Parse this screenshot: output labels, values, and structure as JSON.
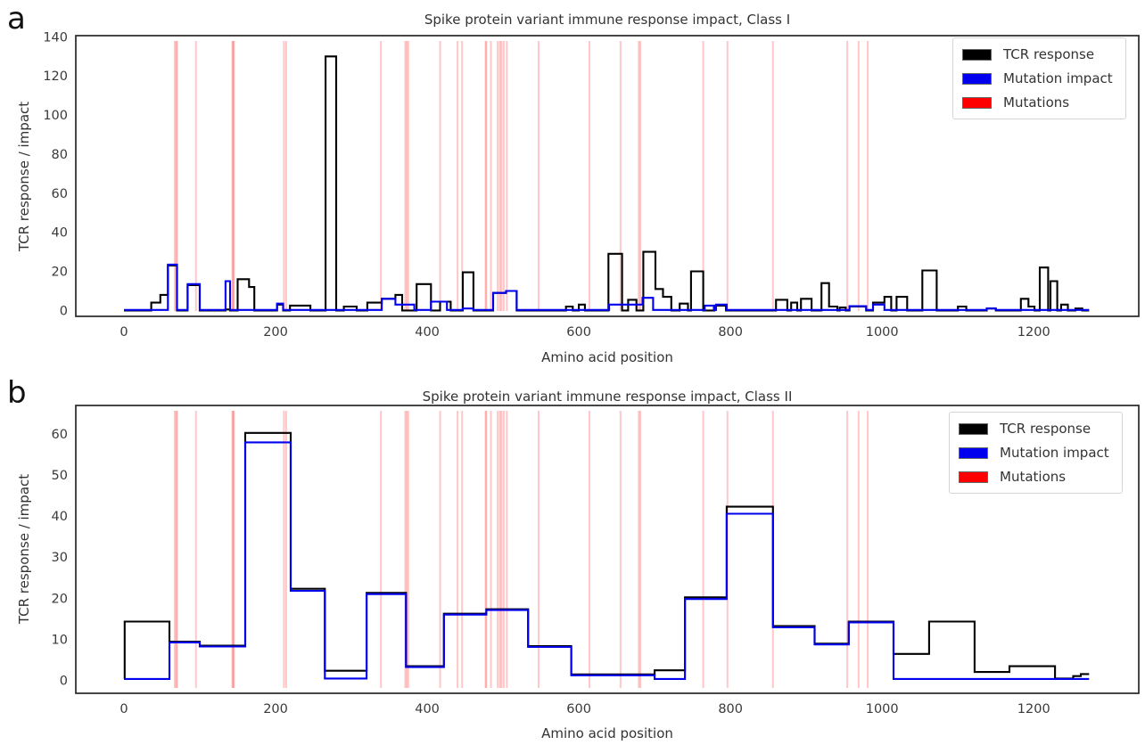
{
  "figure": {
    "background": "#ffffff",
    "frame_color": "#262626",
    "tick_label_color": "#3a3a3a"
  },
  "chart_data": [
    {
      "type": "line",
      "step": true,
      "panel_letter": "a",
      "title": "Spike protein variant immune response impact, Class I",
      "xlabel": "Amino acid position",
      "ylabel": "TCR response / impact",
      "xlim": [
        -63.5,
        1338.5
      ],
      "ylim": [
        -3,
        140.6
      ],
      "xticks": [
        0,
        200,
        400,
        600,
        800,
        1000,
        1200
      ],
      "yticks": [
        0,
        20,
        40,
        60,
        80,
        100,
        120,
        140
      ],
      "grid": false,
      "legend_position": "upper right",
      "mutation_color": "#ff0000",
      "legend": [
        {
          "label": "TCR response",
          "color": "#000000"
        },
        {
          "label": "Mutation impact",
          "color": "#0000ee"
        },
        {
          "label": "Mutations",
          "color": "#ff0000"
        }
      ],
      "mutations": [
        67,
        69,
        70,
        95,
        143,
        144,
        145,
        211,
        214,
        339,
        371,
        373,
        375,
        417,
        440,
        446,
        477,
        478,
        484,
        493,
        496,
        498,
        501,
        505,
        547,
        614,
        655,
        679,
        681,
        764,
        796,
        856,
        954,
        969,
        981
      ],
      "series": [
        {
          "name": "TCR response",
          "color": "#000000",
          "segments": [
            [
              0,
              36,
              0
            ],
            [
              36,
              48,
              4
            ],
            [
              48,
              58,
              8
            ],
            [
              58,
              70,
              23
            ],
            [
              70,
              84,
              0
            ],
            [
              84,
              100,
              13
            ],
            [
              100,
              134,
              0
            ],
            [
              134,
              140,
              0.5
            ],
            [
              140,
              150,
              0
            ],
            [
              150,
              165,
              16
            ],
            [
              165,
              172,
              12
            ],
            [
              172,
              202,
              0
            ],
            [
              202,
              210,
              3
            ],
            [
              210,
              219,
              0
            ],
            [
              219,
              246,
              2.5
            ],
            [
              246,
              266,
              0
            ],
            [
              266,
              280,
              130
            ],
            [
              280,
              290,
              0
            ],
            [
              290,
              307,
              2
            ],
            [
              307,
              321,
              0
            ],
            [
              321,
              340,
              4
            ],
            [
              340,
              358,
              6
            ],
            [
              358,
              367,
              8
            ],
            [
              367,
              386,
              0
            ],
            [
              386,
              405,
              13.5
            ],
            [
              405,
              417,
              0
            ],
            [
              417,
              431,
              4.5
            ],
            [
              431,
              447,
              0
            ],
            [
              447,
              461,
              19.5
            ],
            [
              461,
              487,
              0
            ],
            [
              487,
              504,
              9
            ],
            [
              504,
              518,
              10
            ],
            [
              518,
              583,
              0
            ],
            [
              583,
              592,
              2
            ],
            [
              592,
              600,
              0
            ],
            [
              600,
              608,
              3
            ],
            [
              608,
              639,
              0
            ],
            [
              639,
              657,
              29
            ],
            [
              657,
              665,
              0
            ],
            [
              665,
              676,
              5.5
            ],
            [
              676,
              685,
              0
            ],
            [
              685,
              701,
              30
            ],
            [
              701,
              711,
              11
            ],
            [
              711,
              722,
              7
            ],
            [
              722,
              733,
              0
            ],
            [
              733,
              744,
              3.5
            ],
            [
              744,
              748,
              0
            ],
            [
              748,
              764,
              20
            ],
            [
              764,
              779,
              0
            ],
            [
              779,
              794,
              2.5
            ],
            [
              794,
              860,
              0
            ],
            [
              860,
              875,
              5.5
            ],
            [
              875,
              880,
              0
            ],
            [
              880,
              888,
              4
            ],
            [
              888,
              893,
              0
            ],
            [
              893,
              907,
              6
            ],
            [
              907,
              920,
              0
            ],
            [
              920,
              930,
              14
            ],
            [
              930,
              941,
              2
            ],
            [
              941,
              944,
              0
            ],
            [
              944,
              952,
              1.5
            ],
            [
              952,
              957,
              0
            ],
            [
              957,
              979,
              2
            ],
            [
              979,
              988,
              0
            ],
            [
              988,
              1003,
              4
            ],
            [
              1003,
              1012,
              7
            ],
            [
              1012,
              1019,
              0
            ],
            [
              1019,
              1033,
              7
            ],
            [
              1033,
              1053,
              0
            ],
            [
              1053,
              1072,
              20.5
            ],
            [
              1072,
              1100,
              0
            ],
            [
              1100,
              1111,
              2
            ],
            [
              1111,
              1138,
              0
            ],
            [
              1138,
              1150,
              1
            ],
            [
              1150,
              1183,
              0
            ],
            [
              1183,
              1193,
              6
            ],
            [
              1193,
              1201,
              2
            ],
            [
              1201,
              1208,
              0
            ],
            [
              1208,
              1219,
              22
            ],
            [
              1219,
              1222,
              0
            ],
            [
              1222,
              1231,
              15
            ],
            [
              1231,
              1236,
              0
            ],
            [
              1236,
              1245,
              3
            ],
            [
              1245,
              1255,
              0
            ],
            [
              1255,
              1264,
              1
            ],
            [
              1264,
              1273,
              0
            ]
          ]
        },
        {
          "name": "Mutation impact",
          "color": "#0000ee",
          "segments": [
            [
              0,
              58,
              0.3
            ],
            [
              58,
              70,
              23.5
            ],
            [
              70,
              84,
              0.3
            ],
            [
              84,
              100,
              13.5
            ],
            [
              100,
              134,
              0.3
            ],
            [
              134,
              140,
              15
            ],
            [
              140,
              202,
              0.3
            ],
            [
              202,
              210,
              3.5
            ],
            [
              210,
              340,
              0.3
            ],
            [
              340,
              358,
              6
            ],
            [
              358,
              383,
              3
            ],
            [
              383,
              405,
              0.3
            ],
            [
              405,
              426,
              4.5
            ],
            [
              426,
              447,
              0.3
            ],
            [
              447,
              461,
              1
            ],
            [
              461,
              487,
              0.3
            ],
            [
              487,
              504,
              9
            ],
            [
              504,
              518,
              10
            ],
            [
              518,
              640,
              0.3
            ],
            [
              640,
              684,
              3
            ],
            [
              684,
              698,
              6.5
            ],
            [
              698,
              766,
              0.3
            ],
            [
              766,
              778,
              2.5
            ],
            [
              778,
              781,
              0.3
            ],
            [
              781,
              795,
              3
            ],
            [
              795,
              957,
              0.3
            ],
            [
              957,
              979,
              2.2
            ],
            [
              979,
              988,
              0.3
            ],
            [
              988,
              1003,
              3
            ],
            [
              1003,
              1138,
              0.3
            ],
            [
              1138,
              1150,
              1
            ],
            [
              1150,
              1273,
              0.3
            ]
          ]
        }
      ]
    },
    {
      "type": "line",
      "step": true,
      "panel_letter": "b",
      "title": "Spike protein variant immune response impact, Class II",
      "xlabel": "Amino acid position",
      "ylabel": "TCR response / impact",
      "xlim": [
        -63.5,
        1338.5
      ],
      "ylim": [
        -3.2,
        67
      ],
      "xticks": [
        0,
        200,
        400,
        600,
        800,
        1000,
        1200
      ],
      "yticks": [
        0,
        10,
        20,
        30,
        40,
        50,
        60
      ],
      "grid": false,
      "legend_position": "upper right",
      "mutation_color": "#ff0000",
      "legend": [
        {
          "label": "TCR response",
          "color": "#000000"
        },
        {
          "label": "Mutation impact",
          "color": "#0000ee"
        },
        {
          "label": "Mutations",
          "color": "#ff0000"
        }
      ],
      "mutations": [
        67,
        69,
        70,
        95,
        143,
        144,
        145,
        211,
        214,
        339,
        371,
        373,
        375,
        417,
        440,
        446,
        477,
        478,
        484,
        493,
        496,
        498,
        501,
        505,
        547,
        614,
        655,
        679,
        681,
        764,
        796,
        856,
        954,
        969,
        981
      ],
      "series": [
        {
          "name": "TCR response",
          "color": "#000000",
          "segments": [
            [
              0,
              1,
              0.3
            ],
            [
              1,
              60,
              14.3
            ],
            [
              60,
              100,
              9.4
            ],
            [
              100,
              160,
              8.4
            ],
            [
              160,
              220,
              60.3
            ],
            [
              220,
              265,
              22.3
            ],
            [
              265,
              320,
              2.3
            ],
            [
              320,
              372,
              21.3
            ],
            [
              372,
              422,
              3.4
            ],
            [
              422,
              478,
              16.2
            ],
            [
              478,
              533,
              17.3
            ],
            [
              533,
              590,
              8.3
            ],
            [
              590,
              700,
              1.4
            ],
            [
              700,
              740,
              2.4
            ],
            [
              740,
              795,
              20.2
            ],
            [
              795,
              856,
              42.3
            ],
            [
              856,
              911,
              13.2
            ],
            [
              911,
              956,
              8.9
            ],
            [
              956,
              1015,
              14.3
            ],
            [
              1015,
              1062,
              6.4
            ],
            [
              1062,
              1122,
              14.3
            ],
            [
              1122,
              1168,
              2
            ],
            [
              1168,
              1228,
              3.4
            ],
            [
              1228,
              1252,
              0.4
            ],
            [
              1252,
              1262,
              1
            ],
            [
              1262,
              1273,
              1.5
            ]
          ]
        },
        {
          "name": "Mutation impact",
          "color": "#0000ee",
          "segments": [
            [
              0,
              60,
              0.3
            ],
            [
              60,
              100,
              9.2
            ],
            [
              100,
              160,
              8.2
            ],
            [
              160,
              220,
              58
            ],
            [
              220,
              265,
              21.8
            ],
            [
              265,
              320,
              0.4
            ],
            [
              320,
              372,
              21
            ],
            [
              372,
              422,
              3.2
            ],
            [
              422,
              478,
              16
            ],
            [
              478,
              533,
              17.1
            ],
            [
              533,
              590,
              8.1
            ],
            [
              590,
              700,
              1.2
            ],
            [
              700,
              740,
              0.3
            ],
            [
              740,
              795,
              19.8
            ],
            [
              795,
              856,
              40.6
            ],
            [
              856,
              911,
              12.9
            ],
            [
              911,
              956,
              8.7
            ],
            [
              956,
              1015,
              14.1
            ],
            [
              1015,
              1273,
              0.3
            ]
          ]
        }
      ]
    }
  ]
}
